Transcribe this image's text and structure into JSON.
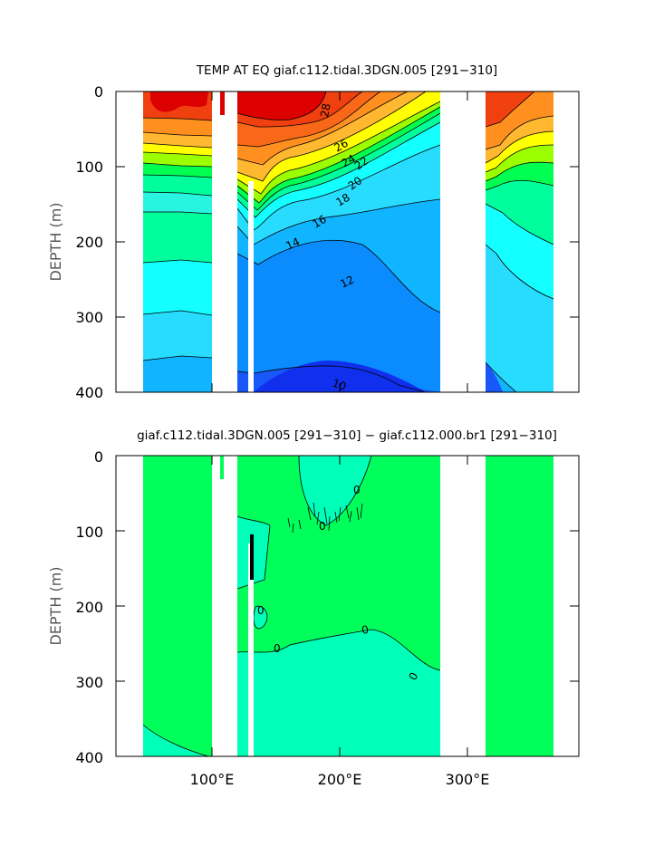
{
  "chart_data": [
    {
      "type": "heatmap",
      "title": "TEMP AT EQ giaf.c112.tidal.3DGN.005 [291−310]",
      "ylabel": "DEPTH (m)",
      "xlabel": "",
      "xlim": [
        20,
        390
      ],
      "ylim": [
        400,
        0
      ],
      "yticks": [
        0,
        100,
        200,
        300,
        400
      ],
      "xticks": [
        100,
        200,
        300
      ],
      "xtick_labels": [
        "",
        "",
        ""
      ],
      "contour_labels": [
        "28",
        "26",
        "24",
        "22",
        "20",
        "18",
        "16",
        "14",
        "12",
        "10"
      ],
      "levels": [
        10,
        11,
        12,
        13,
        14,
        15,
        16,
        17,
        18,
        19,
        20,
        21,
        22,
        23,
        24,
        25,
        26,
        27,
        28
      ],
      "colormap": [
        "#1030ee",
        "#1858f8",
        "#0a8cff",
        "#10b4ff",
        "#28dcff",
        "#14ffff",
        "#00ff9c",
        "#00ff50",
        "#00e040",
        "#9cff00",
        "#ffff00",
        "#ffb830",
        "#ff9020",
        "#f86818",
        "#f04010",
        "#dc0000"
      ],
      "grid": false,
      "land_x": [
        [
          99,
          118
        ],
        [
          128,
          131
        ],
        [
          278,
          316
        ],
        [
          370,
          390
        ]
      ]
    },
    {
      "type": "heatmap",
      "title": "giaf.c112.tidal.3DGN.005 [291−310] − giaf.c112.000.br1 [291−310]",
      "ylabel": "DEPTH (m)",
      "xlabel": "",
      "xlim": [
        20,
        390
      ],
      "ylim": [
        400,
        0
      ],
      "yticks": [
        0,
        100,
        200,
        300,
        400
      ],
      "xticks": [
        100,
        200,
        300
      ],
      "xtick_labels": [
        "100°E",
        "200°E",
        "300°E"
      ],
      "contour_labels": [
        "0",
        "0",
        "0",
        "0",
        "0",
        "0"
      ],
      "colors": {
        "near_zero": "#00ff5a",
        "negative": "#00ffb8"
      },
      "grid": false,
      "land_x": [
        [
          99,
          118
        ],
        [
          128,
          131
        ],
        [
          278,
          316
        ],
        [
          370,
          390
        ]
      ]
    }
  ]
}
